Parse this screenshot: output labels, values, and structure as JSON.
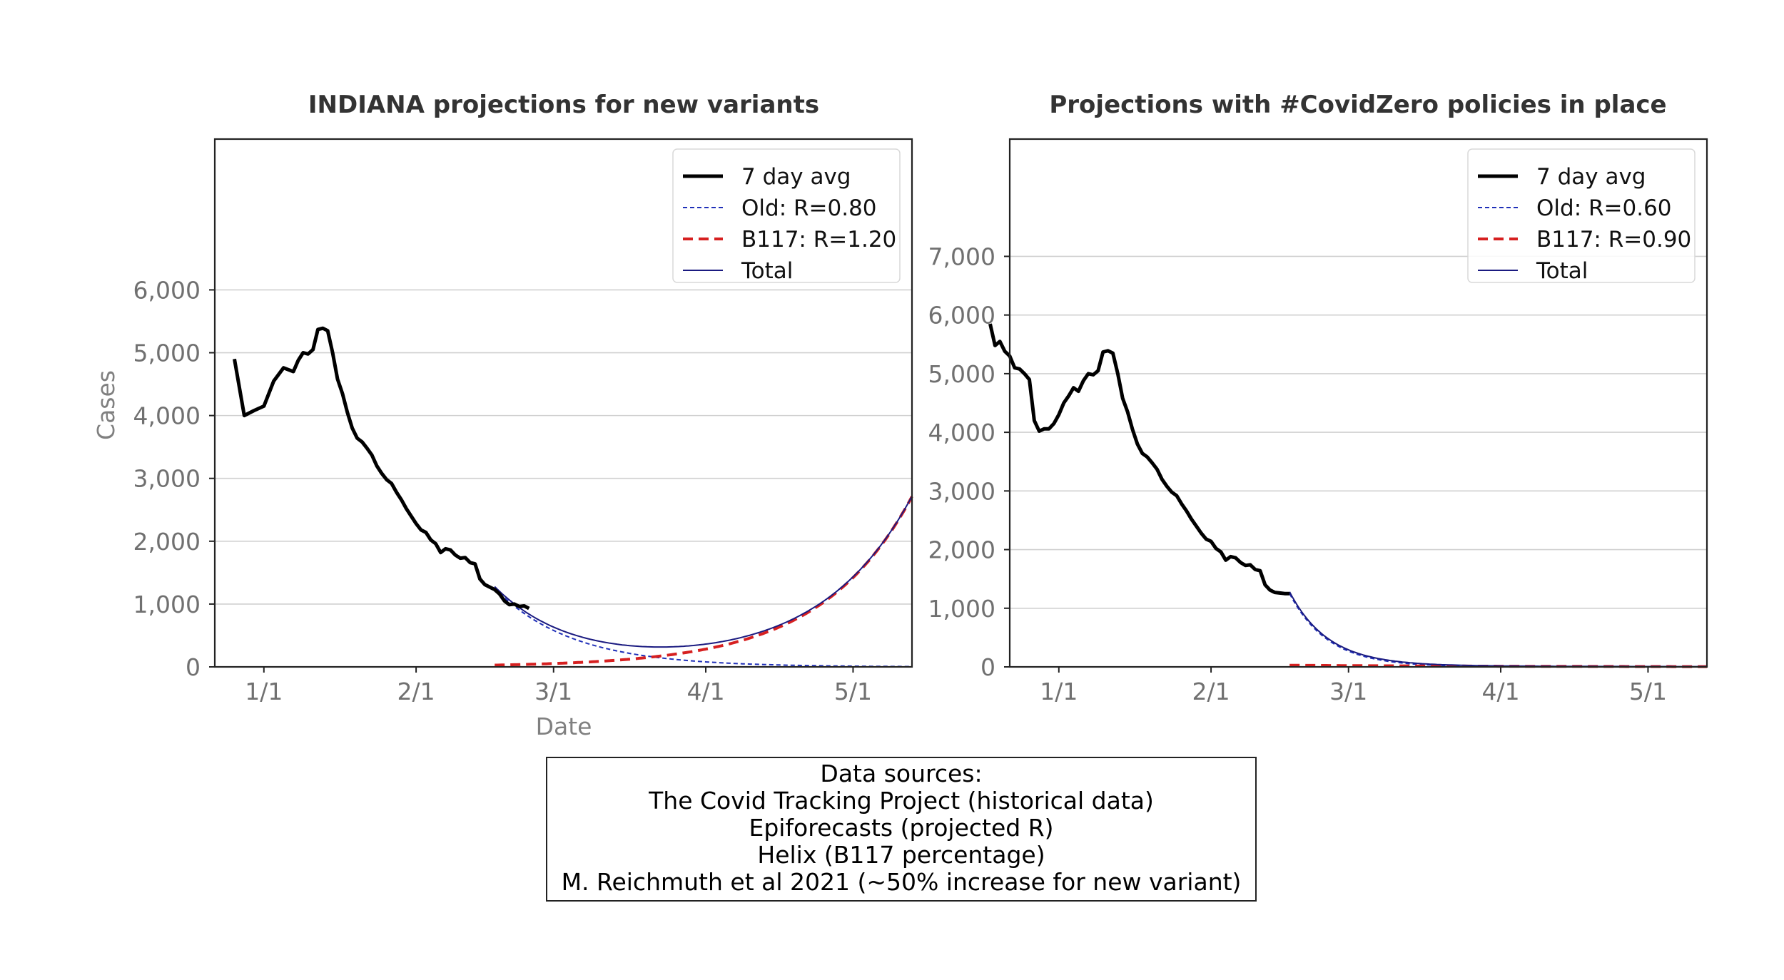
{
  "chart_data": [
    {
      "type": "line",
      "title": "INDIANA projections for new variants",
      "xlabel": "Date",
      "ylabel": "Cases",
      "xlim": [
        -10,
        132
      ],
      "ylim": [
        0,
        8400
      ],
      "x_unit": "days since Jan 1 2021",
      "x_ticks": [
        {
          "value": 0,
          "label": "1/1"
        },
        {
          "value": 31,
          "label": "2/1"
        },
        {
          "value": 59,
          "label": "3/1"
        },
        {
          "value": 90,
          "label": "4/1"
        },
        {
          "value": 120,
          "label": "5/1"
        }
      ],
      "y_ticks": [
        {
          "value": 0,
          "label": "0"
        },
        {
          "value": 1000,
          "label": "1,000"
        },
        {
          "value": 2000,
          "label": "2,000"
        },
        {
          "value": 3000,
          "label": "3,000"
        },
        {
          "value": 4000,
          "label": "4,000"
        },
        {
          "value": 5000,
          "label": "5,000"
        },
        {
          "value": 6000,
          "label": "6,000"
        }
      ],
      "grid": "horizontal",
      "legend_position": "top-right",
      "series": [
        {
          "name": "7 day avg",
          "style": "solid-thick",
          "color": "#000000",
          "x": [
            -6,
            -4,
            -2,
            0,
            2,
            4,
            6,
            7,
            8,
            9,
            10,
            11,
            12,
            13,
            14,
            15,
            16,
            17,
            18,
            19,
            20,
            21,
            22,
            23,
            24,
            25,
            26,
            27,
            28,
            29,
            30,
            31,
            32,
            33,
            34,
            35,
            36,
            37,
            38,
            39,
            40,
            41,
            42,
            43,
            44,
            45,
            46,
            47,
            48,
            49,
            50,
            51,
            52,
            53,
            54
          ],
          "y": [
            4900,
            4000,
            4080,
            4150,
            4550,
            4760,
            4700,
            4880,
            5000,
            4980,
            5050,
            5370,
            5390,
            5350,
            5000,
            4580,
            4350,
            4050,
            3800,
            3640,
            3580,
            3480,
            3370,
            3200,
            3080,
            2980,
            2920,
            2780,
            2660,
            2520,
            2400,
            2280,
            2180,
            2140,
            2020,
            1960,
            1820,
            1880,
            1860,
            1780,
            1730,
            1740,
            1660,
            1640,
            1400,
            1310,
            1270,
            1230,
            1160,
            1050,
            990,
            1000,
            960,
            970,
            930
          ]
        },
        {
          "name": "Old: R=0.80",
          "style": "dashed-thin",
          "color": "#1f2fb8",
          "model": "exponential",
          "x_start": 47,
          "x_end": 132,
          "y_start": 1250,
          "growth_per_day": -0.064
        },
        {
          "name": "B117: R=1.20",
          "style": "dashed-thick",
          "color": "#d62020",
          "model": "exponential",
          "x_start": 47,
          "x_end": 132,
          "y_start": 28,
          "growth_per_day": 0.0538
        },
        {
          "name": "Total",
          "style": "solid-thin",
          "color": "#1a1a80",
          "model": "sum",
          "x_start": 47,
          "x_end": 132
        }
      ]
    },
    {
      "type": "line",
      "title": "Projections with #CovidZero policies in place",
      "xlabel": "",
      "ylabel": "",
      "xlim": [
        -10,
        132
      ],
      "ylim": [
        0,
        9000
      ],
      "x_unit": "days since Jan 1 2021",
      "x_ticks": [
        {
          "value": 0,
          "label": "1/1"
        },
        {
          "value": 31,
          "label": "2/1"
        },
        {
          "value": 59,
          "label": "3/1"
        },
        {
          "value": 90,
          "label": "4/1"
        },
        {
          "value": 120,
          "label": "5/1"
        }
      ],
      "y_ticks": [
        {
          "value": 0,
          "label": "0"
        },
        {
          "value": 1000,
          "label": "1,000"
        },
        {
          "value": 2000,
          "label": "2,000"
        },
        {
          "value": 3000,
          "label": "3,000"
        },
        {
          "value": 4000,
          "label": "4,000"
        },
        {
          "value": 5000,
          "label": "5,000"
        },
        {
          "value": 6000,
          "label": "6,000"
        },
        {
          "value": 7000,
          "label": "7,000"
        }
      ],
      "grid": "horizontal",
      "legend_position": "top-right",
      "series": [
        {
          "name": "7 day avg",
          "style": "solid-thick",
          "color": "#000000",
          "x": [
            -14,
            -13,
            -12,
            -11,
            -10,
            -9,
            -8,
            -7,
            -6,
            -5,
            -4,
            -3,
            -2,
            -1,
            0,
            1,
            2,
            3,
            4,
            5,
            6,
            7,
            8,
            9,
            10,
            11,
            12,
            13,
            14,
            15,
            16,
            17,
            18,
            19,
            20,
            21,
            22,
            23,
            24,
            25,
            26,
            27,
            28,
            29,
            30,
            31,
            32,
            33,
            34,
            35,
            36,
            37,
            38,
            39,
            40,
            41,
            42,
            43,
            44,
            45,
            46,
            47
          ],
          "y": [
            5850,
            5480,
            5550,
            5380,
            5300,
            5100,
            5080,
            5000,
            4900,
            4200,
            4020,
            4060,
            4060,
            4150,
            4300,
            4500,
            4620,
            4760,
            4700,
            4880,
            5000,
            4980,
            5050,
            5370,
            5390,
            5350,
            5000,
            4580,
            4350,
            4050,
            3800,
            3640,
            3580,
            3480,
            3370,
            3200,
            3080,
            2980,
            2920,
            2780,
            2660,
            2520,
            2400,
            2280,
            2180,
            2140,
            2020,
            1960,
            1820,
            1880,
            1860,
            1780,
            1730,
            1740,
            1660,
            1640,
            1400,
            1310,
            1270,
            1260,
            1250,
            1250
          ]
        },
        {
          "name": "Old: R=0.60",
          "style": "dashed-thin",
          "color": "#1f2fb8",
          "model": "exponential",
          "x_start": 47,
          "x_end": 132,
          "y_start": 1250,
          "growth_per_day": -0.128
        },
        {
          "name": "B117: R=0.90",
          "style": "dashed-thick",
          "color": "#d62020",
          "model": "exponential",
          "x_start": 47,
          "x_end": 132,
          "y_start": 28,
          "growth_per_day": -0.021
        },
        {
          "name": "Total",
          "style": "solid-thin",
          "color": "#1a1a80",
          "model": "sum",
          "x_start": 47,
          "x_end": 132
        }
      ]
    }
  ],
  "sources": {
    "lines": [
      "Data sources:",
      "The Covid Tracking Project (historical data)",
      "Epiforecasts (projected R)",
      "Helix (B117 percentage)",
      "M. Reichmuth et al 2021 (~50% increase for new variant)"
    ]
  }
}
